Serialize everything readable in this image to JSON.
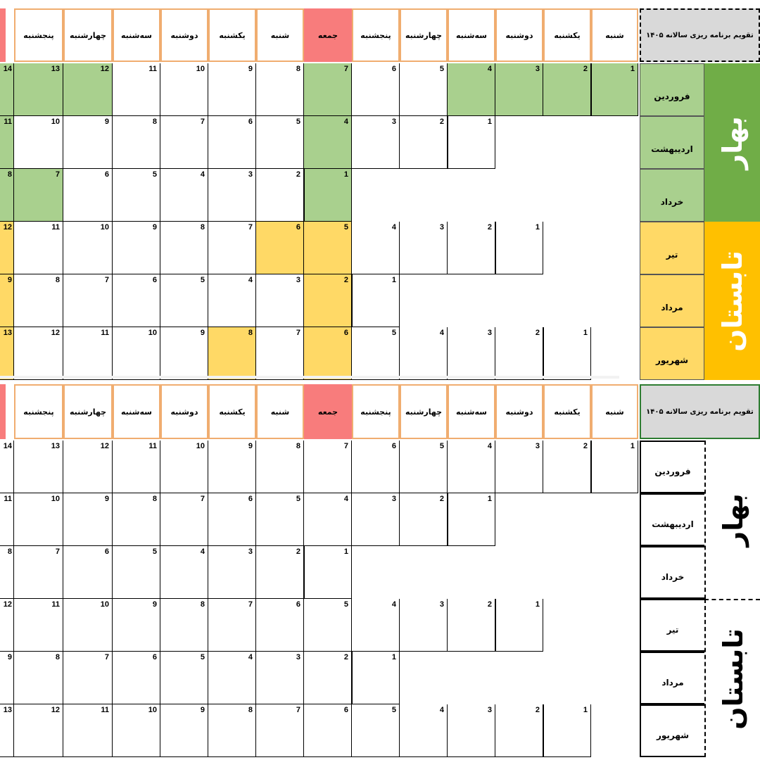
{
  "calendar": {
    "title": "تقویم برنامه ریزی سالانه ۱۴۰۵",
    "weekdays": [
      "شنبه",
      "یکشنبه",
      "دوشنبه",
      "سه‌شنبه",
      "چهارشنبه",
      "پنجشنبه",
      "جمعه",
      "شنبه",
      "یکشنبه",
      "دوشنبه",
      "سه‌شنبه",
      "چهارشنبه",
      "پنجشنبه"
    ],
    "seasons": {
      "spring": "بهار",
      "summer": "تابستان"
    },
    "months": [
      {
        "name": "فروردین",
        "season": "spring",
        "start_col": 0,
        "days": [
          "1",
          "2",
          "3",
          "4",
          "5",
          "6",
          "7",
          "8",
          "9",
          "10",
          "11",
          "12",
          "13"
        ],
        "edge": "14"
      },
      {
        "name": "اردیبهشت",
        "season": "spring",
        "start_col": 3,
        "days": [
          "1",
          "2",
          "3",
          "4",
          "5",
          "6",
          "7",
          "8",
          "9",
          "10"
        ],
        "edge": "11"
      },
      {
        "name": "خرداد",
        "season": "spring",
        "start_col": 6,
        "days": [
          "1",
          "2",
          "3",
          "4",
          "5",
          "6",
          "7"
        ],
        "edge": "8"
      },
      {
        "name": "تیر",
        "season": "summer",
        "start_col": 2,
        "days": [
          "1",
          "2",
          "3",
          "4",
          "5",
          "6",
          "7",
          "8",
          "9",
          "10",
          "11"
        ],
        "edge": "12"
      },
      {
        "name": "مرداد",
        "season": "summer",
        "start_col": 5,
        "days": [
          "1",
          "2",
          "3",
          "4",
          "5",
          "6",
          "7",
          "8"
        ],
        "edge": "9"
      },
      {
        "name": "شهریور",
        "season": "summer",
        "start_col": 1,
        "days": [
          "1",
          "2",
          "3",
          "4",
          "5",
          "6",
          "7",
          "8",
          "9",
          "10",
          "11",
          "12"
        ],
        "edge": "13"
      }
    ],
    "highlights": {
      "0": {
        "0": "green",
        "1": "green",
        "2": "green",
        "3": "green",
        "6": "green",
        "11": "green",
        "12": "green",
        "edge": "green"
      },
      "1": {
        "6": "green",
        "edge": "green"
      },
      "2": {
        "6": "green",
        "12": "green",
        "edge": "green"
      },
      "3": {
        "6": "yellow",
        "7": "yellow",
        "edge": "yellow"
      },
      "4": {
        "6": "yellow",
        "edge": "yellow"
      },
      "5": {
        "6": "yellow",
        "8": "yellow",
        "edge": "yellow"
      }
    },
    "colors": {
      "header_border": "#f0ad70",
      "friday_header": "#f87c7c",
      "spring_band": "#70ad47",
      "spring_fill": "#a9d08e",
      "summer_band": "#ffc000",
      "summer_fill": "#ffd966",
      "title_bg": "#d9d9d9"
    }
  }
}
